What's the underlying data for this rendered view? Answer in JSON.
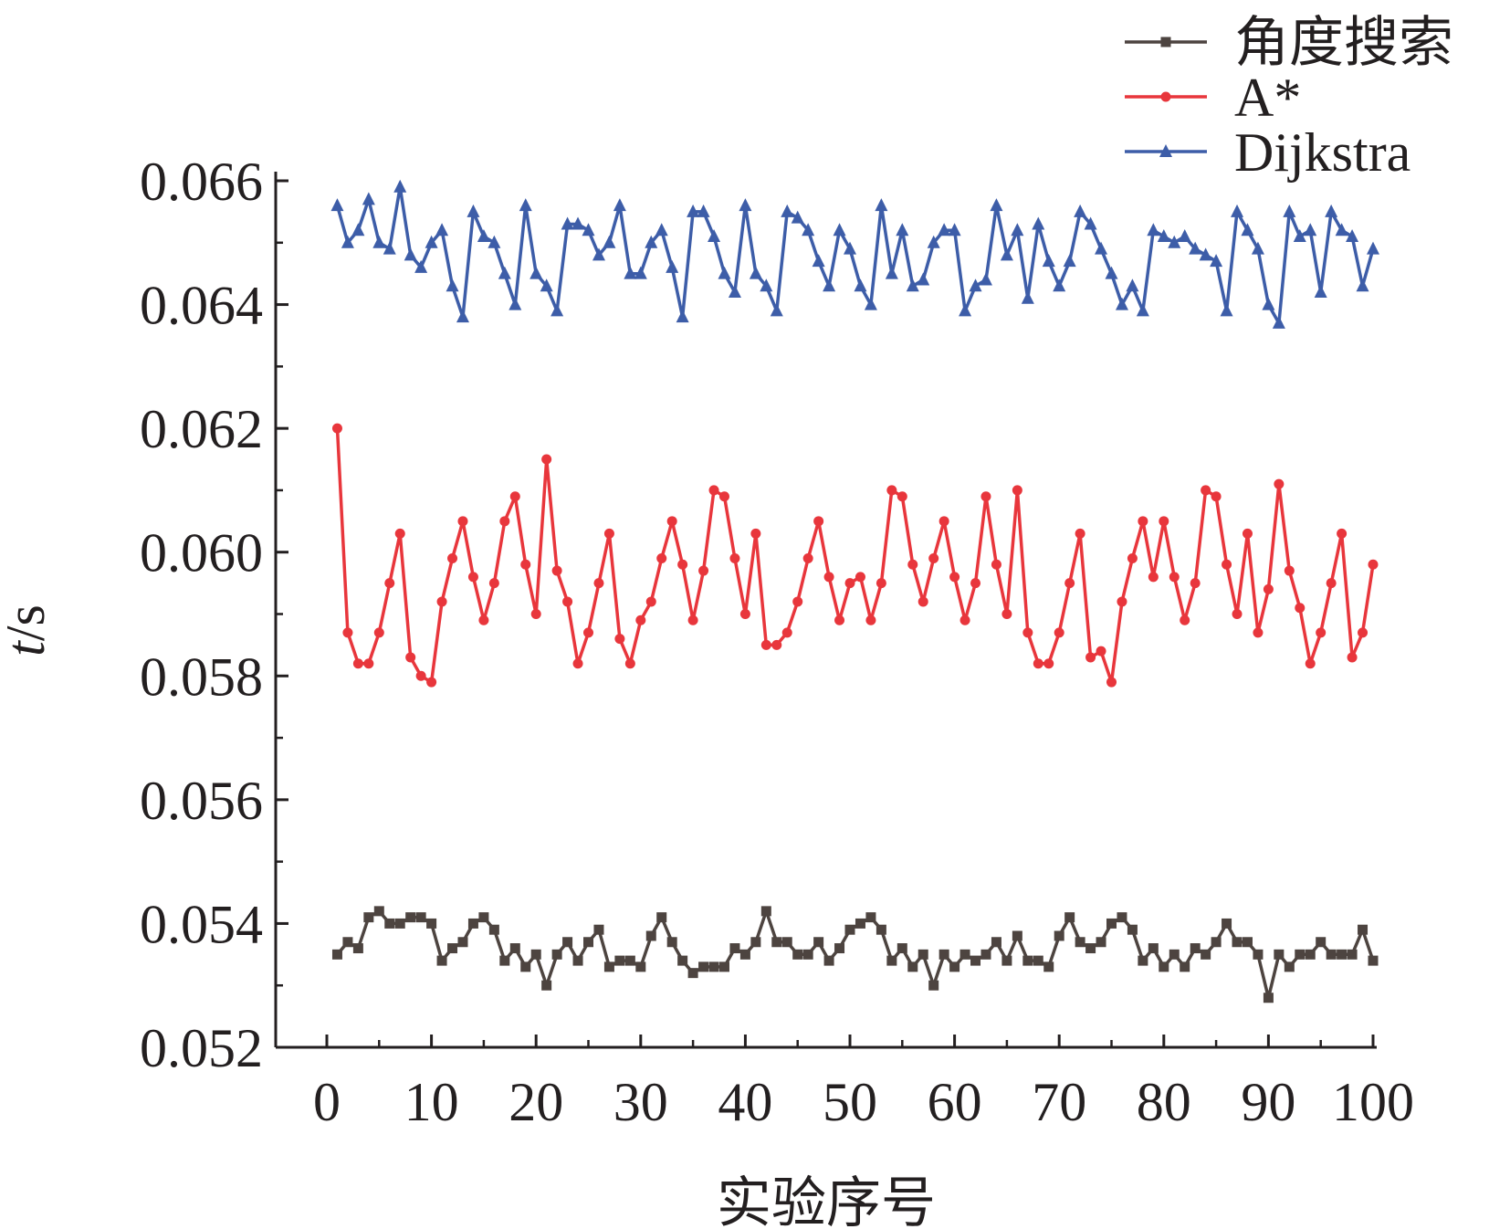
{
  "chart_data": {
    "type": "line",
    "title": "",
    "xlabel": "实验序号",
    "ylabel": "t/s",
    "xlim": [
      0,
      100
    ],
    "ylim": [
      0.052,
      0.066
    ],
    "xticks": [
      0,
      10,
      20,
      30,
      40,
      50,
      60,
      70,
      80,
      90,
      100
    ],
    "xtick_labels": [
      "0",
      "10",
      "20",
      "30",
      "40",
      "50",
      "60",
      "70",
      "80",
      "90",
      "100"
    ],
    "yticks": [
      0.052,
      0.054,
      0.056,
      0.058,
      0.06,
      0.062,
      0.064,
      0.066
    ],
    "ytick_labels": [
      "0.052",
      "0.054",
      "0.056",
      "0.058",
      "0.060",
      "0.062",
      "0.064",
      "0.066"
    ],
    "grid": false,
    "legend_position": "top-right",
    "x": [
      1,
      2,
      3,
      4,
      5,
      6,
      7,
      8,
      9,
      10,
      11,
      12,
      13,
      14,
      15,
      16,
      17,
      18,
      19,
      20,
      21,
      22,
      23,
      24,
      25,
      26,
      27,
      28,
      29,
      30,
      31,
      32,
      33,
      34,
      35,
      36,
      37,
      38,
      39,
      40,
      41,
      42,
      43,
      44,
      45,
      46,
      47,
      48,
      49,
      50,
      51,
      52,
      53,
      54,
      55,
      56,
      57,
      58,
      59,
      60,
      61,
      62,
      63,
      64,
      65,
      66,
      67,
      68,
      69,
      70,
      71,
      72,
      73,
      74,
      75,
      76,
      77,
      78,
      79,
      80,
      81,
      82,
      83,
      84,
      85,
      86,
      87,
      88,
      89,
      90,
      91,
      92,
      93,
      94,
      95,
      96,
      97,
      98,
      99,
      100
    ],
    "series": [
      {
        "name": "角度搜索",
        "color": "#4d4440",
        "marker": "square",
        "values": [
          0.0535,
          0.0537,
          0.0536,
          0.0541,
          0.0542,
          0.054,
          0.054,
          0.0541,
          0.0541,
          0.054,
          0.0534,
          0.0536,
          0.0537,
          0.054,
          0.0541,
          0.0539,
          0.0534,
          0.0536,
          0.0533,
          0.0535,
          0.053,
          0.0535,
          0.0537,
          0.0534,
          0.0537,
          0.0539,
          0.0533,
          0.0534,
          0.0534,
          0.0533,
          0.0538,
          0.0541,
          0.0537,
          0.0534,
          0.0532,
          0.0533,
          0.0533,
          0.0533,
          0.0536,
          0.0535,
          0.0537,
          0.0542,
          0.0537,
          0.0537,
          0.0535,
          0.0535,
          0.0537,
          0.0534,
          0.0536,
          0.0539,
          0.054,
          0.0541,
          0.0539,
          0.0534,
          0.0536,
          0.0533,
          0.0535,
          0.053,
          0.0535,
          0.0533,
          0.0535,
          0.0534,
          0.0535,
          0.0537,
          0.0534,
          0.0538,
          0.0534,
          0.0534,
          0.0533,
          0.0538,
          0.0541,
          0.0537,
          0.0536,
          0.0537,
          0.054,
          0.0541,
          0.0539,
          0.0534,
          0.0536,
          0.0533,
          0.0535,
          0.0533,
          0.0536,
          0.0535,
          0.0537,
          0.054,
          0.0537,
          0.0537,
          0.0535,
          0.0528,
          0.0535,
          0.0533,
          0.0535,
          0.0535,
          0.0537,
          0.0535,
          0.0535,
          0.0535,
          0.0539,
          0.0534
        ]
      },
      {
        "name": "A*",
        "color": "#e8363c",
        "marker": "circle",
        "values": [
          0.062,
          0.0587,
          0.0582,
          0.0582,
          0.0587,
          0.0595,
          0.0603,
          0.0583,
          0.058,
          0.0579,
          0.0592,
          0.0599,
          0.0605,
          0.0596,
          0.0589,
          0.0595,
          0.0605,
          0.0609,
          0.0598,
          0.059,
          0.0615,
          0.0597,
          0.0592,
          0.0582,
          0.0587,
          0.0595,
          0.0603,
          0.0586,
          0.0582,
          0.0589,
          0.0592,
          0.0599,
          0.0605,
          0.0598,
          0.0589,
          0.0597,
          0.061,
          0.0609,
          0.0599,
          0.059,
          0.0603,
          0.0585,
          0.0585,
          0.0587,
          0.0592,
          0.0599,
          0.0605,
          0.0596,
          0.0589,
          0.0595,
          0.0596,
          0.0589,
          0.0595,
          0.061,
          0.0609,
          0.0598,
          0.0592,
          0.0599,
          0.0605,
          0.0596,
          0.0589,
          0.0595,
          0.0609,
          0.0598,
          0.059,
          0.061,
          0.0587,
          0.0582,
          0.0582,
          0.0587,
          0.0595,
          0.0603,
          0.0583,
          0.0584,
          0.0579,
          0.0592,
          0.0599,
          0.0605,
          0.0596,
          0.0605,
          0.0596,
          0.0589,
          0.0595,
          0.061,
          0.0609,
          0.0598,
          0.059,
          0.0603,
          0.0587,
          0.0594,
          0.0611,
          0.0597,
          0.0591,
          0.0582,
          0.0587,
          0.0595,
          0.0603,
          0.0583,
          0.0587,
          0.0598
        ]
      },
      {
        "name": "Dijkstra",
        "color": "#3d5da8",
        "marker": "triangle",
        "values": [
          0.0656,
          0.065,
          0.0652,
          0.0657,
          0.065,
          0.0649,
          0.0659,
          0.0648,
          0.0646,
          0.065,
          0.0652,
          0.0643,
          0.0638,
          0.0655,
          0.0651,
          0.065,
          0.0645,
          0.064,
          0.0656,
          0.0645,
          0.0643,
          0.0639,
          0.0653,
          0.0653,
          0.0652,
          0.0648,
          0.065,
          0.0656,
          0.0645,
          0.0645,
          0.065,
          0.0652,
          0.0646,
          0.0638,
          0.0655,
          0.0655,
          0.0651,
          0.0645,
          0.0642,
          0.0656,
          0.0645,
          0.0643,
          0.0639,
          0.0655,
          0.0654,
          0.0652,
          0.0647,
          0.0643,
          0.0652,
          0.0649,
          0.0643,
          0.064,
          0.0656,
          0.0645,
          0.0652,
          0.0643,
          0.0644,
          0.065,
          0.0652,
          0.0652,
          0.0639,
          0.0643,
          0.0644,
          0.0656,
          0.0648,
          0.0652,
          0.0641,
          0.0653,
          0.0647,
          0.0643,
          0.0647,
          0.0655,
          0.0653,
          0.0649,
          0.0645,
          0.064,
          0.0643,
          0.0639,
          0.0652,
          0.0651,
          0.065,
          0.0651,
          0.0649,
          0.0648,
          0.0647,
          0.0639,
          0.0655,
          0.0652,
          0.0649,
          0.064,
          0.0637,
          0.0655,
          0.0651,
          0.0652,
          0.0642,
          0.0655,
          0.0652,
          0.0651,
          0.0643,
          0.0649
        ]
      }
    ]
  }
}
